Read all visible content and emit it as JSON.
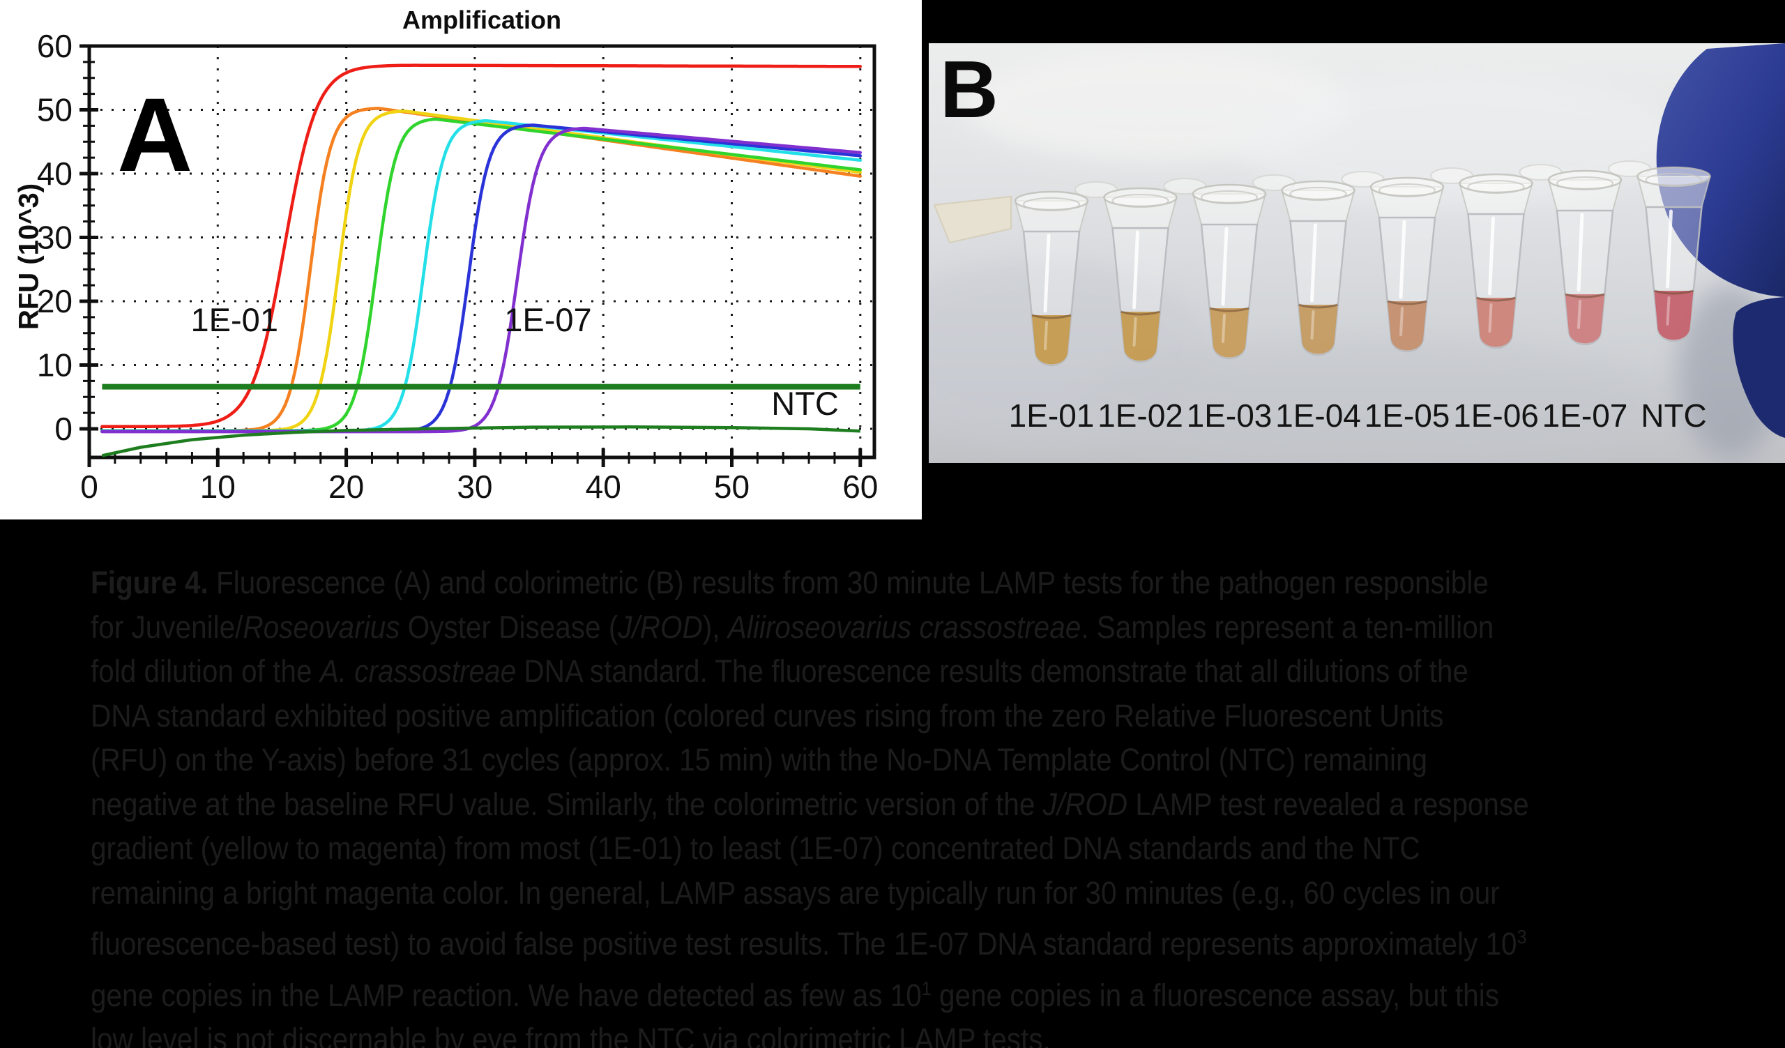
{
  "figure": {
    "background": "#000000"
  },
  "panel_a": {
    "letter": "A"
  },
  "chart_data": {
    "type": "line",
    "title": "Amplification",
    "xlabel": "",
    "ylabel": "RFU (10^3)",
    "xlim": [
      0,
      61.2
    ],
    "ylim": [
      -4.6,
      60
    ],
    "xticks": [
      0,
      10,
      20,
      30,
      40,
      50,
      60
    ],
    "yticks": [
      0,
      10,
      20,
      30,
      40,
      50,
      60
    ],
    "x_minor_step": 2,
    "y_minor_step": 2.5,
    "grid": "dotted",
    "legend": "none",
    "threshold_line": {
      "label": "threshold",
      "y": 6.6,
      "x_start": 1,
      "x_end": 60,
      "color": "#1e7d1e"
    },
    "series": [
      {
        "name": "1E-01",
        "color": "#ee1d16",
        "baseline": 0.35,
        "rise_midpoint_cycle": 15.2,
        "rise_rate": 0.8,
        "peak_rfu": 57.0,
        "peak_cycle": 21.5,
        "rfu_at_cycle_60": 56.8
      },
      {
        "name": "1E-02",
        "color": "#f58020",
        "baseline": -0.3,
        "rise_midpoint_cycle": 17.2,
        "rise_rate": 1.25,
        "peak_rfu": 50.3,
        "peak_cycle": 22.3,
        "rfu_at_cycle_60": 39.6
      },
      {
        "name": "1E-03",
        "color": "#f0d313",
        "baseline": -0.3,
        "rise_midpoint_cycle": 19.4,
        "rise_rate": 1.25,
        "peak_rfu": 49.9,
        "peak_cycle": 24.2,
        "rfu_at_cycle_60": 40.2
      },
      {
        "name": "1E-04",
        "color": "#30d42c",
        "baseline": -0.3,
        "rise_midpoint_cycle": 22.3,
        "rise_rate": 1.25,
        "peak_rfu": 48.7,
        "peak_cycle": 26.3,
        "rfu_at_cycle_60": 40.6
      },
      {
        "name": "1E-05",
        "color": "#23dfe8",
        "baseline": -0.35,
        "rise_midpoint_cycle": 26.0,
        "rise_rate": 1.25,
        "peak_rfu": 48.4,
        "peak_cycle": 30.4,
        "rfu_at_cycle_60": 42.1
      },
      {
        "name": "1E-06",
        "color": "#2a33d8",
        "baseline": -0.4,
        "rise_midpoint_cycle": 29.5,
        "rise_rate": 1.25,
        "peak_rfu": 47.7,
        "peak_cycle": 34.0,
        "rfu_at_cycle_60": 42.8
      },
      {
        "name": "1E-07",
        "color": "#8130cf",
        "baseline": -0.45,
        "rise_midpoint_cycle": 33.3,
        "rise_rate": 1.2,
        "peak_rfu": 47.2,
        "peak_cycle": 38.0,
        "rfu_at_cycle_60": 43.3
      }
    ],
    "ntc_series": {
      "name": "NTC",
      "color": "#1e7d1e",
      "points": [
        [
          1,
          -4.2
        ],
        [
          4,
          -2.9
        ],
        [
          8,
          -1.7
        ],
        [
          12,
          -1.0
        ],
        [
          16,
          -0.55
        ],
        [
          20,
          -0.25
        ],
        [
          26,
          0.0
        ],
        [
          34,
          0.25
        ],
        [
          42,
          0.3
        ],
        [
          50,
          0.2
        ],
        [
          56,
          0.0
        ],
        [
          60,
          -0.35
        ]
      ]
    },
    "annotations": [
      {
        "text": "1E-01",
        "x": 11.3,
        "y": 15.3
      },
      {
        "text": "1E-07",
        "x": 35.7,
        "y": 15.3
      },
      {
        "text": "NTC",
        "x": 55.7,
        "y": 2.2
      }
    ]
  },
  "panel_b": {
    "letter": "B",
    "glove_color": "#2c3b92",
    "tubes": [
      {
        "label": "1E-01",
        "liquid_color": "#c59a4d"
      },
      {
        "label": "1E-02",
        "liquid_color": "#c59a4f"
      },
      {
        "label": "1E-03",
        "liquid_color": "#c79c5c"
      },
      {
        "label": "1E-04",
        "liquid_color": "#c49a60"
      },
      {
        "label": "1E-05",
        "liquid_color": "#c48f6e"
      },
      {
        "label": "1E-06",
        "liquid_color": "#cc8378"
      },
      {
        "label": "1E-07",
        "liquid_color": "#cc7e80"
      },
      {
        "label": "NTC",
        "liquid_color": "#c4626e"
      }
    ]
  },
  "caption": {
    "lines": [
      [
        {
          "t": "Figure 4.",
          "b": true
        },
        {
          "t": " Fluorescence (A) and colorimetric (B) results from 30 minute LAMP tests for the pathogen responsible"
        }
      ],
      [
        {
          "t": "for Juvenile/"
        },
        {
          "t": "Roseovarius",
          "i": true
        },
        {
          "t": " Oyster Disease ("
        },
        {
          "t": "J/ROD",
          "i": true
        },
        {
          "t": "), "
        },
        {
          "t": "Aliiroseovarius crassostreae",
          "i": true
        },
        {
          "t": ". Samples represent a ten-million"
        }
      ],
      [
        {
          "t": "fold dilution of the "
        },
        {
          "t": "A. crassostreae",
          "i": true
        },
        {
          "t": " DNA standard. The fluorescence results demonstrate that all dilutions of the"
        }
      ],
      [
        {
          "t": "DNA standard exhibited positive amplification (colored curves rising from the zero Relative Fluorescent Units"
        }
      ],
      [
        {
          "t": "(RFU) on the Y-axis) before 31 cycles (approx. 15 min) with the No-DNA Template Control (NTC) remaining"
        }
      ],
      [
        {
          "t": "negative at the baseline RFU value. Similarly, the colorimetric version of the "
        },
        {
          "t": "J/ROD",
          "i": true
        },
        {
          "t": " LAMP test revealed a response"
        }
      ],
      [
        {
          "t": "gradient (yellow to magenta) from most (1E-01) to least (1E-07) concentrated DNA standards and the NTC"
        }
      ],
      [
        {
          "t": "remaining a bright magenta color. In general, LAMP assays are typically run for 30 minutes (e.g., 60 cycles in our"
        }
      ],
      [
        {
          "t": "fluorescence-based test) to avoid false positive test results. The 1E-07 DNA standard represents approximately 10"
        },
        {
          "t": "3",
          "sup": true
        }
      ],
      [
        {
          "t": "gene copies in the LAMP reaction. We have detected as few as 10"
        },
        {
          "t": "1",
          "sup": true
        },
        {
          "t": " gene copies in a fluorescence assay, but this"
        }
      ],
      [
        {
          "t": "low level is not discernable by eye from the NTC via colorimetric LAMP tests."
        }
      ]
    ]
  }
}
